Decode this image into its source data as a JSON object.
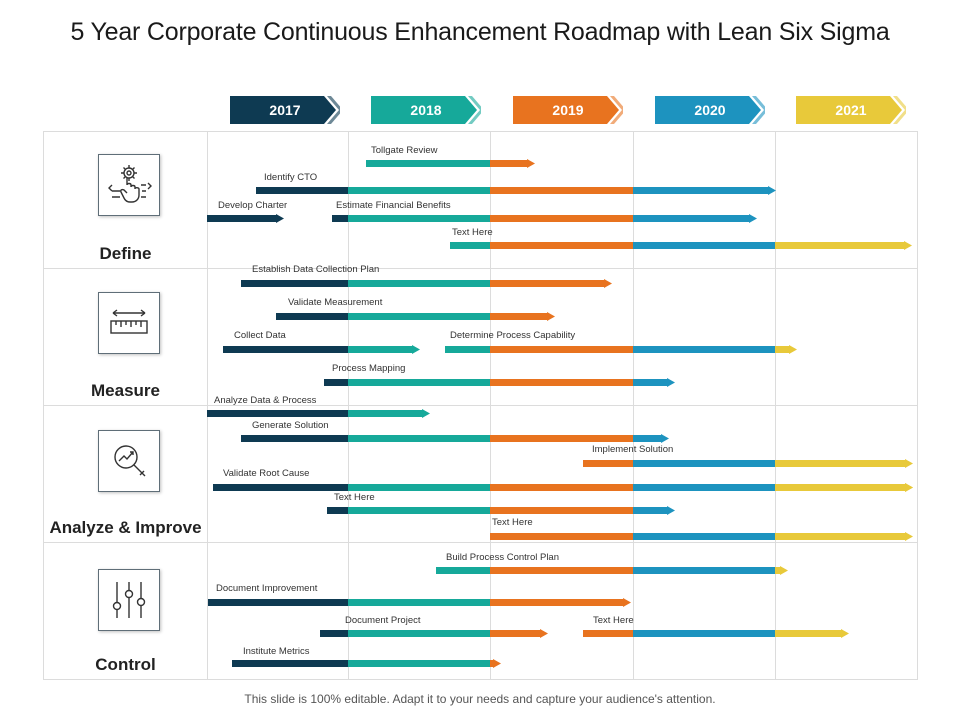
{
  "title": "5 Year Corporate Continuous Enhancement Roadmap with Lean Six Sigma",
  "footer": "This slide is 100% editable. Adapt it to your needs and capture your audience's attention.",
  "colors": {
    "2017": "#0e3a52",
    "2018": "#16a99a",
    "2019": "#e8731f",
    "2020": "#1d93bf",
    "2021": "#e8c93a"
  },
  "years": [
    "2017",
    "2018",
    "2019",
    "2020",
    "2021"
  ],
  "categories": [
    {
      "label": "Define",
      "icon": "gear-hand-icon"
    },
    {
      "label": "Measure",
      "icon": "ruler-measure-icon"
    },
    {
      "label": "Analyze & Improve",
      "icon": "analytics-magnifier-icon"
    },
    {
      "label": "Control",
      "icon": "sliders-control-icon"
    }
  ],
  "tasks": [
    {
      "label": "Tollgate Review",
      "start": 2018.13,
      "end": 2019.3
    },
    {
      "label": "Identify CTO",
      "start": 2017.35,
      "end": 2020.99
    },
    {
      "label": "Develop Charter",
      "start": 2017.0,
      "end": 2017.53
    },
    {
      "label": "Estimate Financial Benefits",
      "start": 2017.89,
      "end": 2020.86
    },
    {
      "label": "Text Here",
      "start": 2018.72,
      "end": 2021.95
    },
    {
      "label": "Establish Data Collection Plan",
      "start": 2017.24,
      "end": 2019.84
    },
    {
      "label": "Validate Measurement",
      "start": 2017.49,
      "end": 2019.44
    },
    {
      "label": "Collect Data",
      "start": 2017.11,
      "end": 2018.49
    },
    {
      "label": "Determine Process Capability",
      "start": 2018.68,
      "end": 2021.14
    },
    {
      "label": "Process Mapping",
      "start": 2017.83,
      "end": 2020.28
    },
    {
      "label": "Analyze Data & Process",
      "start": 2017.0,
      "end": 2018.56
    },
    {
      "label": "Generate Solution",
      "start": 2017.24,
      "end": 2020.24
    },
    {
      "label": "Implement Solution",
      "start": 2019.65,
      "end": 2021.96
    },
    {
      "label": "Validate Root Cause",
      "start": 2017.04,
      "end": 2021.96
    },
    {
      "label": "Text Here",
      "start": 2017.85,
      "end": 2020.28
    },
    {
      "label": "Text Here",
      "start": 2019.0,
      "end": 2021.96
    },
    {
      "label": "Build Process Control Plan",
      "start": 2018.62,
      "end": 2021.08
    },
    {
      "label": "Document Improvement",
      "start": 2017.01,
      "end": 2019.97
    },
    {
      "label": "Document Project",
      "start": 2017.8,
      "end": 2019.39
    },
    {
      "label": "Text Here",
      "start": 2019.65,
      "end": 2021.51
    },
    {
      "label": "Institute Metrics",
      "start": 2017.18,
      "end": 2019.06
    }
  ],
  "extra_bars": [
    {
      "start": 2020.31,
      "end": 2021.96
    }
  ]
}
